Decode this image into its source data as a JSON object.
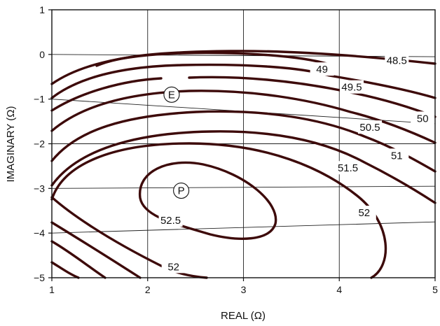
{
  "chart_data": {
    "type": "contour",
    "title": "",
    "xlabel": "REAL (Ω)",
    "ylabel": "IMAGINARY (Ω)",
    "xlim": [
      1,
      5
    ],
    "ylim": [
      -5,
      1
    ],
    "x_ticks": [
      "1",
      "2",
      "3",
      "4",
      "5"
    ],
    "y_ticks": [
      "1",
      "0",
      "−1",
      "−2",
      "−3",
      "−4",
      "−5"
    ],
    "x_tick_values": [
      1,
      2,
      3,
      4,
      5
    ],
    "y_tick_values": [
      1,
      0,
      -1,
      -2,
      -3,
      -4,
      -5
    ],
    "grid": true,
    "contour_levels": [
      {
        "label": "48.5",
        "x": [
          1.5,
          2.5,
          3.5,
          4.5,
          5
        ],
        "y": [
          -0.2,
          0.03,
          0.04,
          -0.05,
          -0.12
        ]
      },
      {
        "label": "49",
        "x": [
          1,
          2,
          3,
          4,
          5
        ],
        "y": [
          -0.7,
          0.02,
          0.05,
          -0.2,
          -0.4
        ]
      },
      {
        "label": "49.5",
        "x": [
          1,
          2,
          3,
          4,
          5
        ],
        "y": [
          -1.1,
          -0.3,
          -0.1,
          -0.5,
          -0.95
        ]
      },
      {
        "label": "50",
        "x": [
          1,
          2,
          3,
          4,
          5
        ],
        "y": [
          -1.5,
          -0.5,
          -0.3,
          -0.8,
          -1.6
        ]
      },
      {
        "label": "50.5",
        "x": [
          1,
          2,
          3,
          4,
          5
        ],
        "y": [
          -1.9,
          -0.8,
          -0.6,
          -1.2,
          -1.9
        ]
      },
      {
        "label": "51",
        "x": [
          1,
          2,
          3,
          4,
          5
        ],
        "y": [
          -2.4,
          -1.1,
          -1.0,
          -1.6,
          -2.3
        ]
      },
      {
        "label": "51.5",
        "x": [
          1,
          2,
          3,
          4,
          5
        ],
        "y": [
          -3.1,
          -1.6,
          -1.6,
          -2.1,
          -2.7
        ]
      },
      {
        "label": "52",
        "x": [
          1.3,
          2,
          3,
          4,
          4.4
        ],
        "y": [
          -2.9,
          -2.0,
          -2.0,
          -2.9,
          -4.3
        ]
      },
      {
        "label": "52.5",
        "x": [
          1.8,
          2.3,
          3,
          3.6,
          3.1
        ],
        "y": [
          -3.0,
          -2.4,
          -2.6,
          -3.7,
          -4.1
        ]
      }
    ],
    "contour_labels": [
      "48.5",
      "49",
      "49.5",
      "50",
      "50.5",
      "51",
      "51.5",
      "52",
      "52.5",
      "52"
    ],
    "markers": [
      {
        "label": "E",
        "x": 2.25,
        "y": -0.9
      },
      {
        "label": "P",
        "x": 2.35,
        "y": -3.05
      }
    ]
  }
}
